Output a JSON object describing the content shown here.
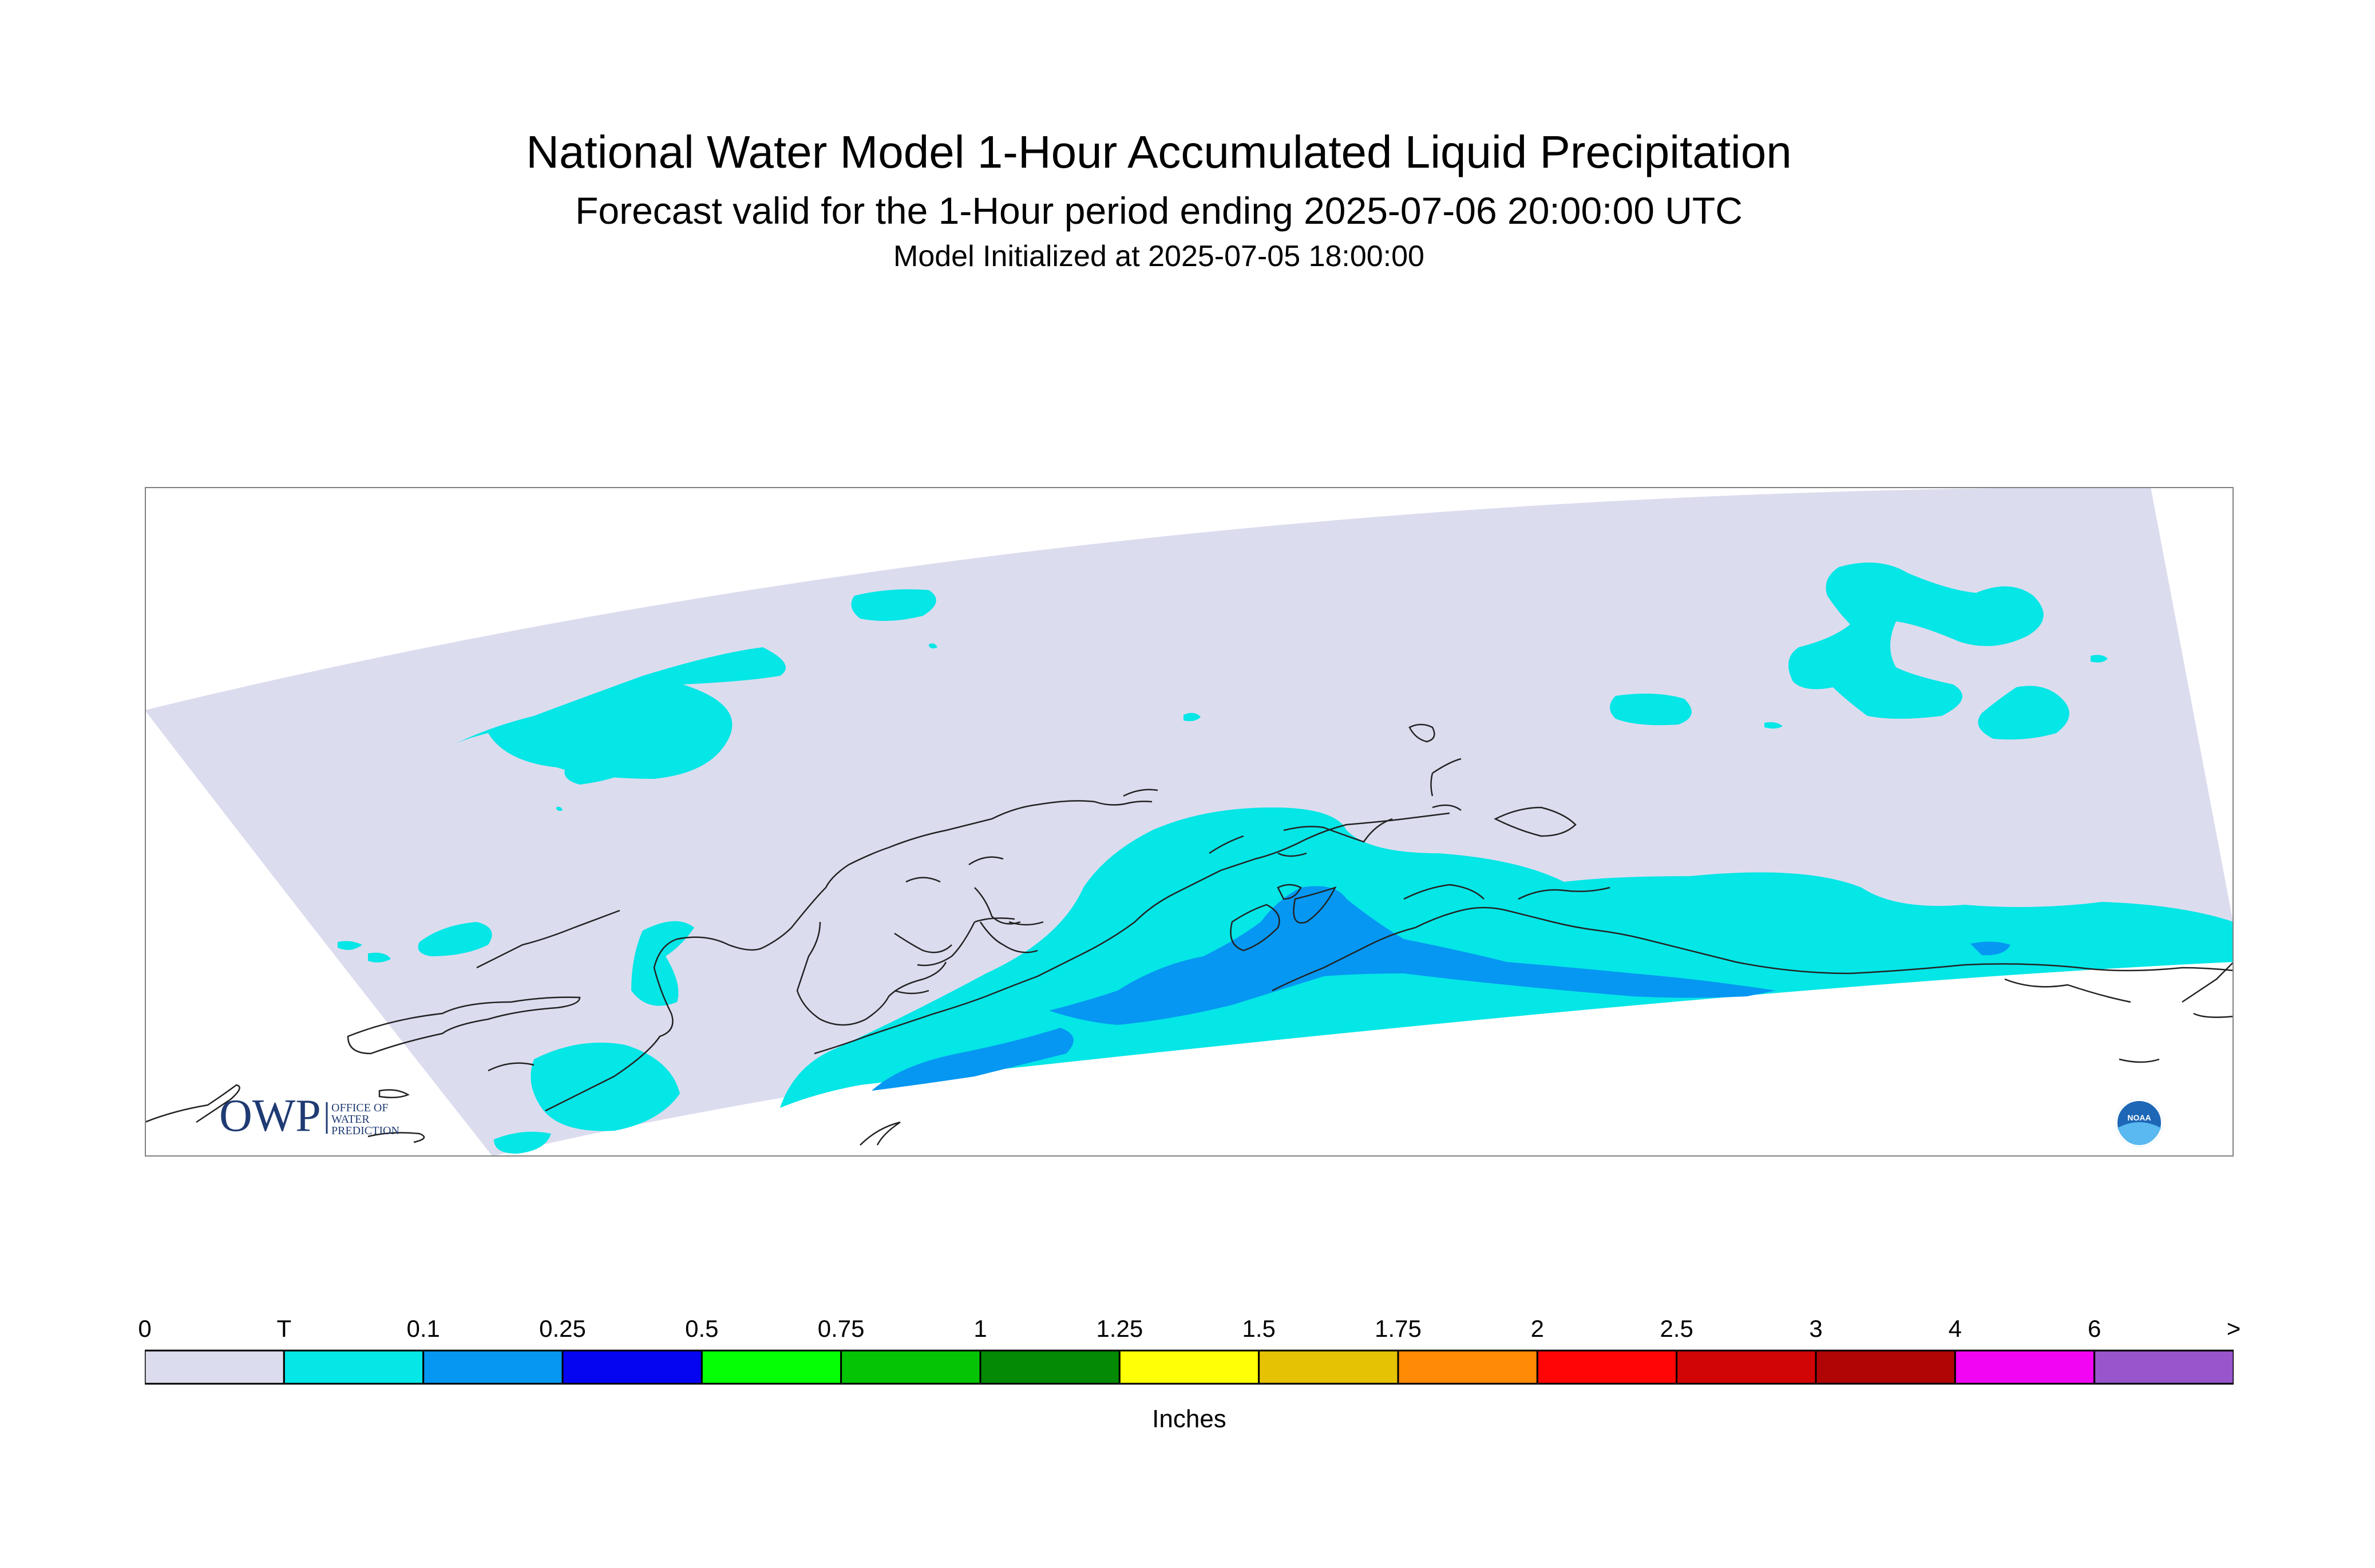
{
  "header": {
    "title": "National Water Model 1-Hour Accumulated Liquid Precipitation",
    "subtitle": "Forecast valid for the 1-Hour period ending 2025-07-06 20:00:00 UTC",
    "init": "Model Initialized at 2025-07-05 18:00:00"
  },
  "logos": {
    "owp_letters": "OWP",
    "owp_line1": "OFFICE OF",
    "owp_line2": "WATER",
    "owp_line3": "PREDICTION",
    "noaa": "NOAA"
  },
  "colors": {
    "domain_zero": "#dcdcef",
    "trace": "#05e6e6",
    "tenth": "#0597f2",
    "coast": "#222222"
  },
  "legend": {
    "unit_label": "Inches",
    "ticks": [
      "0",
      "T",
      "0.1",
      "0.25",
      "0.5",
      "0.75",
      "1",
      "1.25",
      "1.5",
      "1.75",
      "2",
      "2.5",
      "3",
      "4",
      "6",
      ">"
    ],
    "colors": [
      "#dcdcef",
      "#05e6e6",
      "#0597f2",
      "#0505f2",
      "#05ff05",
      "#05c405",
      "#058a05",
      "#ffff05",
      "#e6c205",
      "#ff8a05",
      "#ff0505",
      "#d10505",
      "#b00505",
      "#f205f2",
      "#9955cc"
    ]
  }
}
